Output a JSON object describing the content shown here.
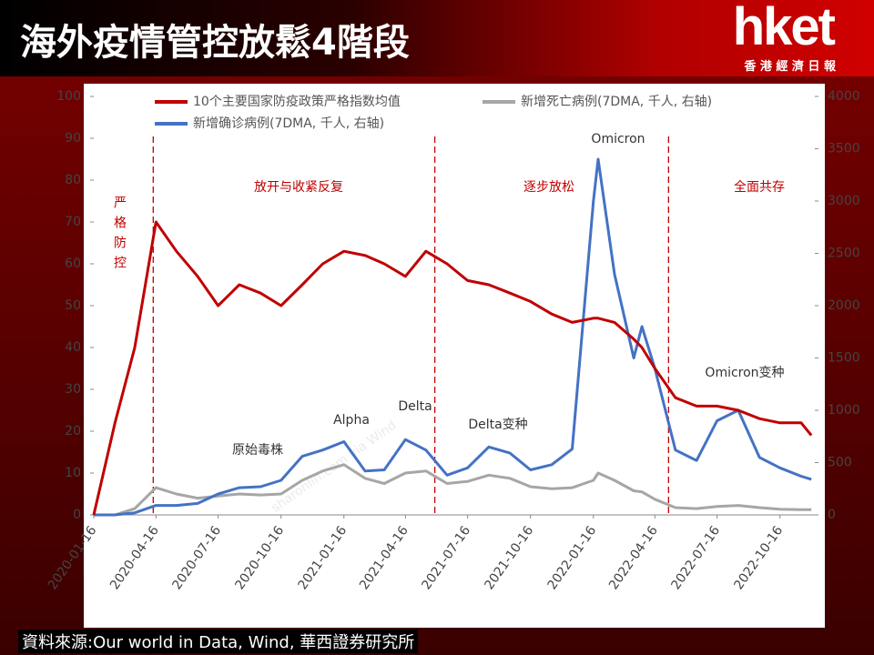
{
  "header": {
    "title": "海外疫情管控放鬆4階段",
    "logo": "hket",
    "logo_sub": "香 港 經 濟 日 報"
  },
  "chart_data": {
    "type": "line",
    "x": [
      "2020-01-16",
      "2020-02-16",
      "2020-03-16",
      "2020-04-16",
      "2020-05-16",
      "2020-06-16",
      "2020-07-16",
      "2020-08-16",
      "2020-09-16",
      "2020-10-16",
      "2020-11-16",
      "2020-12-16",
      "2021-01-16",
      "2021-02-16",
      "2021-03-16",
      "2021-04-16",
      "2021-05-16",
      "2021-06-16",
      "2021-07-16",
      "2021-08-16",
      "2021-09-16",
      "2021-10-16",
      "2021-11-16",
      "2021-12-16",
      "2022-01-16",
      "2022-01-23",
      "2022-02-16",
      "2022-03-16",
      "2022-03-28",
      "2022-04-16",
      "2022-05-16",
      "2022-06-16",
      "2022-07-16",
      "2022-08-16",
      "2022-09-16",
      "2022-10-16",
      "2022-11-16",
      "2022-12-01"
    ],
    "series": [
      {
        "name": "10个主要国家防疫政策严格指数均值",
        "color": "#c00000",
        "values": [
          0,
          22,
          40,
          70,
          63,
          57,
          50,
          55,
          53,
          50,
          55,
          60,
          63,
          62,
          60,
          57,
          63,
          60,
          56,
          55,
          53,
          51,
          48,
          46,
          47,
          47,
          46,
          42,
          40,
          35,
          28,
          26,
          26,
          25,
          23,
          22,
          22,
          19
        ]
      },
      {
        "name": "新增死亡病例(7DMA, 千人, 右轴)",
        "color": "#a6a6a6",
        "axis": "y2",
        "values": [
          0,
          0,
          60,
          260,
          200,
          160,
          180,
          200,
          190,
          200,
          330,
          420,
          480,
          350,
          300,
          400,
          420,
          300,
          320,
          380,
          350,
          270,
          250,
          260,
          330,
          400,
          330,
          230,
          220,
          150,
          70,
          60,
          80,
          90,
          70,
          55,
          50,
          50
        ]
      },
      {
        "name": "新增确诊病例(7DMA, 千人, 右轴)",
        "color": "#4472c4",
        "axis": "y2",
        "values": [
          0,
          0,
          20,
          90,
          90,
          110,
          200,
          260,
          270,
          330,
          560,
          620,
          700,
          420,
          430,
          720,
          620,
          380,
          450,
          650,
          590,
          430,
          480,
          630,
          3000,
          3400,
          2300,
          1500,
          1800,
          1400,
          620,
          520,
          900,
          1000,
          550,
          450,
          370,
          340
        ]
      }
    ],
    "xlim": [
      "2020-01-16",
      "2022-12-06"
    ],
    "xticks": [
      "2020-01-16",
      "2020-04-16",
      "2020-07-16",
      "2020-10-16",
      "2021-01-16",
      "2021-04-16",
      "2021-07-16",
      "2021-10-16",
      "2022-01-16",
      "2022-04-16",
      "2022-07-16",
      "2022-10-16"
    ],
    "ylim": [
      0,
      100
    ],
    "yticks": [
      0,
      10,
      20,
      30,
      40,
      50,
      60,
      70,
      80,
      90,
      100
    ],
    "y2lim": [
      0,
      4000
    ],
    "y2ticks": [
      0,
      500,
      1000,
      1500,
      2000,
      2500,
      3000,
      3500,
      4000
    ],
    "phase_boundaries": [
      "2020-04-12",
      "2021-05-29",
      "2022-05-06"
    ],
    "annotations": [
      "严格防控",
      "放开与收紧反复",
      "逐步放松",
      "全面共存",
      "原始毒株",
      "Alpha",
      "Delta",
      "Delta变种",
      "Omicron",
      "Omicron变种"
    ],
    "watermark": "sharonlin.com via Wind"
  },
  "footer": {
    "source": "資料來源:Our world in Data, Wind, 華西證券研究所"
  }
}
